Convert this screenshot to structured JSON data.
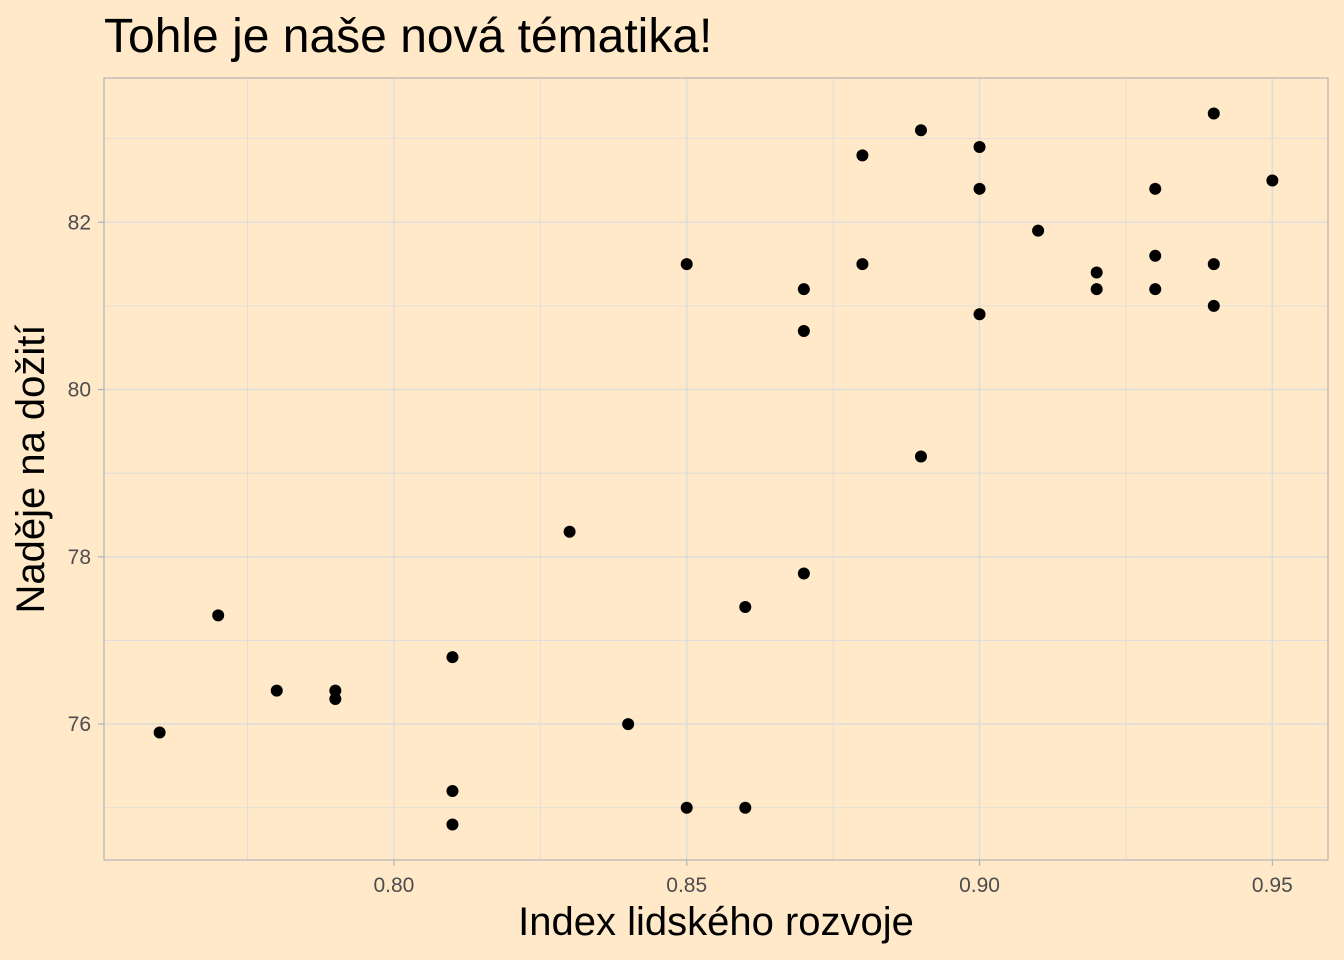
{
  "chart_data": {
    "type": "scatter",
    "title": "Tohle je naše nová tématika!",
    "xlabel": "Index lidského rozvoje",
    "ylabel": "Naděje na dožití",
    "xlim": [
      0.7505,
      0.9595
    ],
    "ylim": [
      74.375,
      83.725
    ],
    "x_ticks": [
      0.8,
      0.85,
      0.9,
      0.95
    ],
    "x_tick_labels": [
      "0.80",
      "0.85",
      "0.90",
      "0.95"
    ],
    "x_minor_ticks": [
      0.775,
      0.825,
      0.875,
      0.925
    ],
    "y_ticks": [
      76,
      78,
      80,
      82
    ],
    "y_tick_labels": [
      "76",
      "78",
      "80",
      "82"
    ],
    "y_minor_ticks": [
      75,
      77,
      79,
      81,
      83
    ],
    "grid": true,
    "legend": "none",
    "points": [
      {
        "x": 0.76,
        "y": 75.9
      },
      {
        "x": 0.77,
        "y": 77.3
      },
      {
        "x": 0.78,
        "y": 76.4
      },
      {
        "x": 0.79,
        "y": 76.4
      },
      {
        "x": 0.79,
        "y": 76.3
      },
      {
        "x": 0.81,
        "y": 76.8
      },
      {
        "x": 0.81,
        "y": 75.2
      },
      {
        "x": 0.81,
        "y": 74.8
      },
      {
        "x": 0.83,
        "y": 78.3
      },
      {
        "x": 0.84,
        "y": 76.0
      },
      {
        "x": 0.85,
        "y": 81.5
      },
      {
        "x": 0.85,
        "y": 75.0
      },
      {
        "x": 0.86,
        "y": 77.4
      },
      {
        "x": 0.86,
        "y": 75.0
      },
      {
        "x": 0.87,
        "y": 81.2
      },
      {
        "x": 0.87,
        "y": 80.7
      },
      {
        "x": 0.87,
        "y": 77.8
      },
      {
        "x": 0.88,
        "y": 82.8
      },
      {
        "x": 0.88,
        "y": 81.5
      },
      {
        "x": 0.89,
        "y": 83.1
      },
      {
        "x": 0.89,
        "y": 79.2
      },
      {
        "x": 0.9,
        "y": 82.9
      },
      {
        "x": 0.9,
        "y": 82.4
      },
      {
        "x": 0.9,
        "y": 80.9
      },
      {
        "x": 0.91,
        "y": 81.9
      },
      {
        "x": 0.92,
        "y": 81.4
      },
      {
        "x": 0.92,
        "y": 81.2
      },
      {
        "x": 0.93,
        "y": 82.4
      },
      {
        "x": 0.93,
        "y": 81.6
      },
      {
        "x": 0.93,
        "y": 81.2
      },
      {
        "x": 0.94,
        "y": 83.3
      },
      {
        "x": 0.94,
        "y": 81.5
      },
      {
        "x": 0.94,
        "y": 81.0
      },
      {
        "x": 0.95,
        "y": 82.5
      }
    ],
    "colors": {
      "background": "#FFE9C8",
      "point": "#000000",
      "grid": "#DCDCDC",
      "panel_border": "#B3B3B3",
      "tick_text": "#4D4D4D"
    }
  }
}
